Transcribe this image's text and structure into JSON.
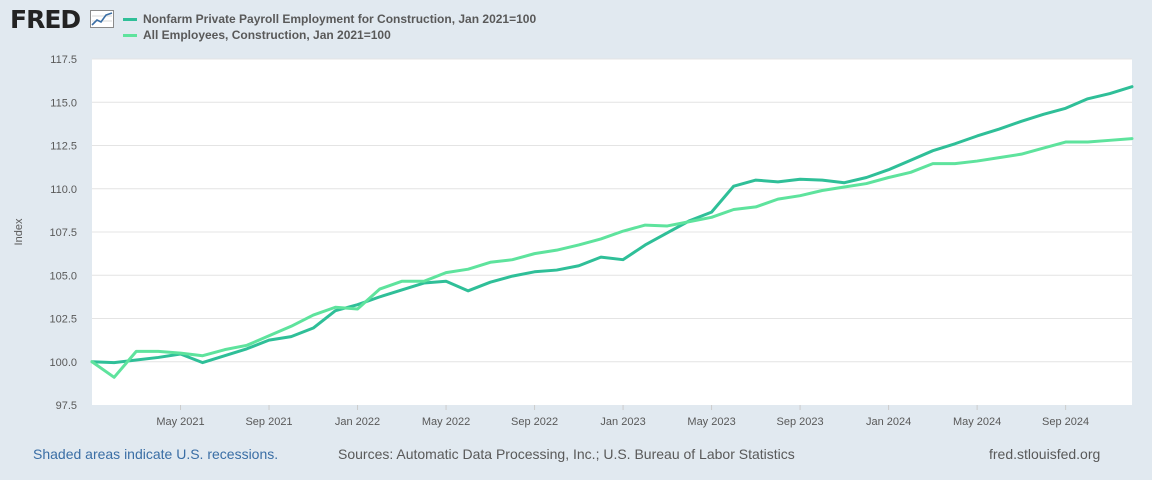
{
  "header": {
    "logo_text": "FRED",
    "logo_icon": "chart-trend-icon"
  },
  "footer": {
    "recession_note": "Shaded areas indicate U.S. recessions.",
    "sources": "Sources: Automatic Data Processing, Inc.; U.S. Bureau of Labor Statistics",
    "site": "fred.stlouisfed.org"
  },
  "colors": {
    "background": "#e1e9f0",
    "plot_background": "#ffffff",
    "series_1": "#2fbf98",
    "series_2": "#5ee39d",
    "link": "#3a6ea5",
    "text": "#595959"
  },
  "chart_data": {
    "type": "line",
    "title": "",
    "xlabel": "",
    "ylabel": "Index",
    "ylim": [
      97.5,
      117.5
    ],
    "yticks": [
      "97.5",
      "100.0",
      "102.5",
      "105.0",
      "107.5",
      "110.0",
      "112.5",
      "115.0",
      "117.5"
    ],
    "xlim": [
      "2021-01",
      "2024-12"
    ],
    "xticks": [
      {
        "label": "May 2021",
        "date": "2021-05"
      },
      {
        "label": "Sep 2021",
        "date": "2021-09"
      },
      {
        "label": "Jan 2022",
        "date": "2022-01"
      },
      {
        "label": "May 2022",
        "date": "2022-05"
      },
      {
        "label": "Sep 2022",
        "date": "2022-09"
      },
      {
        "label": "Jan 2023",
        "date": "2023-01"
      },
      {
        "label": "May 2023",
        "date": "2023-05"
      },
      {
        "label": "Sep 2023",
        "date": "2023-09"
      },
      {
        "label": "Jan 2024",
        "date": "2024-01"
      },
      {
        "label": "May 2024",
        "date": "2024-05"
      },
      {
        "label": "Sep 2024",
        "date": "2024-09"
      }
    ],
    "grid": true,
    "legend_position": "top-left",
    "x": [
      "2021-01",
      "2021-02",
      "2021-03",
      "2021-04",
      "2021-05",
      "2021-06",
      "2021-07",
      "2021-08",
      "2021-09",
      "2021-10",
      "2021-11",
      "2021-12",
      "2022-01",
      "2022-02",
      "2022-03",
      "2022-04",
      "2022-05",
      "2022-06",
      "2022-07",
      "2022-08",
      "2022-09",
      "2022-10",
      "2022-11",
      "2022-12",
      "2023-01",
      "2023-02",
      "2023-03",
      "2023-04",
      "2023-05",
      "2023-06",
      "2023-07",
      "2023-08",
      "2023-09",
      "2023-10",
      "2023-11",
      "2023-12",
      "2024-01",
      "2024-02",
      "2024-03",
      "2024-04",
      "2024-05",
      "2024-06",
      "2024-07",
      "2024-08",
      "2024-09",
      "2024-10",
      "2024-11",
      "2024-12"
    ],
    "series": [
      {
        "name": "Nonfarm Private Payroll Employment for Construction, Jan 2021=100",
        "color": "#2fbf98",
        "values": [
          100.0,
          99.95,
          100.1,
          100.25,
          100.45,
          99.95,
          100.35,
          100.75,
          101.25,
          101.45,
          101.95,
          102.95,
          103.3,
          103.75,
          104.15,
          104.55,
          104.65,
          104.1,
          104.6,
          104.95,
          105.2,
          105.3,
          105.55,
          106.05,
          105.9,
          106.75,
          107.45,
          108.15,
          108.65,
          110.15,
          110.5,
          110.4,
          110.55,
          110.5,
          110.35,
          110.65,
          111.1,
          111.65,
          112.2,
          112.6,
          113.05,
          113.45,
          113.9,
          114.3,
          114.65,
          115.2,
          115.5,
          115.9
        ]
      },
      {
        "name": "All Employees, Construction, Jan 2021=100",
        "color": "#5ee39d",
        "values": [
          100.0,
          99.1,
          100.6,
          100.6,
          100.5,
          100.35,
          100.7,
          100.95,
          101.5,
          102.05,
          102.7,
          103.15,
          103.05,
          104.2,
          104.65,
          104.65,
          105.15,
          105.35,
          105.75,
          105.9,
          106.25,
          106.45,
          106.75,
          107.1,
          107.55,
          107.9,
          107.85,
          108.1,
          108.35,
          108.8,
          108.95,
          109.4,
          109.6,
          109.9,
          110.1,
          110.3,
          110.65,
          110.95,
          111.45,
          111.45,
          111.6,
          111.8,
          112.0,
          112.35,
          112.7,
          112.7,
          112.8,
          112.9
        ]
      }
    ]
  }
}
